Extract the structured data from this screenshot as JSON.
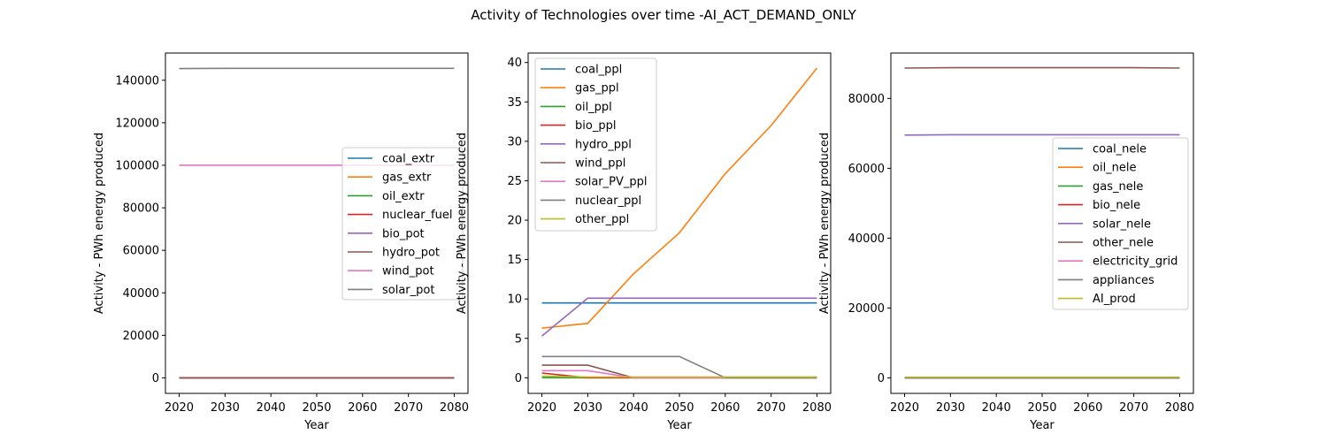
{
  "title": "Activity of Technologies over time -AI_ACT_DEMAND_ONLY",
  "chart_data": [
    {
      "type": "line",
      "xlabel": "Year",
      "ylabel": "Activity - PWh energy produced",
      "x": [
        2020,
        2030,
        2040,
        2050,
        2060,
        2070,
        2080
      ],
      "xticks": [
        2020,
        2030,
        2040,
        2050,
        2060,
        2070,
        2080
      ],
      "xlim": [
        2017,
        2083
      ],
      "ylim": [
        -7300,
        152800
      ],
      "yticks": [
        0,
        20000,
        40000,
        60000,
        80000,
        100000,
        120000,
        140000
      ],
      "ytick_labels": [
        "0",
        "20000",
        "40000",
        "60000",
        "80000",
        "100000",
        "120000",
        "140000"
      ],
      "legend": "center-right",
      "series": [
        {
          "name": "coal_extr",
          "color": "#1f77b4",
          "values": [
            0,
            0,
            0,
            0,
            0,
            0,
            0
          ]
        },
        {
          "name": "gas_extr",
          "color": "#ff7f0e",
          "values": [
            0,
            0,
            0,
            0,
            0,
            0,
            0
          ]
        },
        {
          "name": "oil_extr",
          "color": "#2ca02c",
          "values": [
            0,
            0,
            0,
            0,
            0,
            0,
            0
          ]
        },
        {
          "name": "nuclear_fuel",
          "color": "#d62728",
          "values": [
            0,
            0,
            0,
            0,
            0,
            0,
            0
          ]
        },
        {
          "name": "bio_pot",
          "color": "#9467bd",
          "values": [
            0,
            0,
            0,
            0,
            0,
            0,
            0
          ]
        },
        {
          "name": "hydro_pot",
          "color": "#8c564b",
          "values": [
            0,
            0,
            0,
            0,
            0,
            0,
            0
          ]
        },
        {
          "name": "wind_pot",
          "color": "#e377c2",
          "values": [
            100000,
            100000,
            100000,
            100000,
            100000,
            100000,
            100000
          ]
        },
        {
          "name": "solar_pot",
          "color": "#7f7f7f",
          "values": [
            145500,
            145600,
            145600,
            145600,
            145600,
            145600,
            145600
          ]
        }
      ]
    },
    {
      "type": "line",
      "xlabel": "Year",
      "ylabel": "Activity - PWh energy produced",
      "x": [
        2020,
        2030,
        2040,
        2050,
        2060,
        2070,
        2080
      ],
      "xticks": [
        2020,
        2030,
        2040,
        2050,
        2060,
        2070,
        2080
      ],
      "xlim": [
        2017,
        2083
      ],
      "ylim": [
        -1.98,
        41.2
      ],
      "yticks": [
        0,
        5,
        10,
        15,
        20,
        25,
        30,
        35,
        40
      ],
      "ytick_labels": [
        "0",
        "5",
        "10",
        "15",
        "20",
        "25",
        "30",
        "35",
        "40"
      ],
      "legend": "top-left",
      "series": [
        {
          "name": "coal_ppl",
          "color": "#1f77b4",
          "values": [
            9.5,
            9.5,
            9.5,
            9.5,
            9.5,
            9.5,
            9.5
          ]
        },
        {
          "name": "gas_ppl",
          "color": "#ff7f0e",
          "values": [
            6.3,
            6.9,
            13.2,
            18.4,
            25.9,
            32.0,
            39.3
          ]
        },
        {
          "name": "oil_ppl",
          "color": "#2ca02c",
          "values": [
            0,
            0,
            0,
            0,
            0,
            0,
            0
          ]
        },
        {
          "name": "bio_ppl",
          "color": "#d62728",
          "values": [
            0.6,
            0,
            0,
            0,
            0,
            0,
            0
          ]
        },
        {
          "name": "hydro_ppl",
          "color": "#9467bd",
          "values": [
            5.3,
            10.1,
            10.1,
            10.1,
            10.1,
            10.1,
            10.1
          ]
        },
        {
          "name": "wind_ppl",
          "color": "#8c564b",
          "values": [
            1.6,
            1.6,
            0,
            0,
            0,
            0,
            0
          ]
        },
        {
          "name": "solar_PV_ppl",
          "color": "#e377c2",
          "values": [
            0.9,
            0.9,
            0,
            0,
            0,
            0,
            0
          ]
        },
        {
          "name": "nuclear_ppl",
          "color": "#7f7f7f",
          "values": [
            2.7,
            2.7,
            2.7,
            2.7,
            0,
            0,
            0
          ]
        },
        {
          "name": "other_ppl",
          "color": "#bcbd22",
          "values": [
            0.2,
            0.1,
            0.1,
            0.1,
            0.1,
            0.1,
            0.1
          ]
        }
      ]
    },
    {
      "type": "line",
      "xlabel": "Year",
      "ylabel": "Activity - PWh energy produced",
      "x": [
        2020,
        2030,
        2040,
        2050,
        2060,
        2070,
        2080
      ],
      "xticks": [
        2020,
        2030,
        2040,
        2050,
        2060,
        2070,
        2080
      ],
      "xlim": [
        2017,
        2083
      ],
      "ylim": [
        -4450,
        93000
      ],
      "yticks": [
        0,
        20000,
        40000,
        60000,
        80000
      ],
      "ytick_labels": [
        "0",
        "20000",
        "40000",
        "60000",
        "80000"
      ],
      "legend": "center-right",
      "series": [
        {
          "name": "coal_nele",
          "color": "#1f77b4",
          "values": [
            0,
            0,
            0,
            0,
            0,
            0,
            0
          ]
        },
        {
          "name": "oil_nele",
          "color": "#ff7f0e",
          "values": [
            0,
            0,
            0,
            0,
            0,
            0,
            0
          ]
        },
        {
          "name": "gas_nele",
          "color": "#2ca02c",
          "values": [
            0,
            0,
            0,
            0,
            0,
            0,
            0
          ]
        },
        {
          "name": "bio_nele",
          "color": "#d62728",
          "values": [
            0,
            0,
            0,
            0,
            0,
            0,
            0
          ]
        },
        {
          "name": "solar_nele",
          "color": "#9467bd",
          "values": [
            69500,
            69600,
            69600,
            69600,
            69600,
            69600,
            69600
          ]
        },
        {
          "name": "other_nele",
          "color": "#8c564b",
          "values": [
            88700,
            88800,
            88800,
            88800,
            88800,
            88800,
            88700
          ]
        },
        {
          "name": "electricity_grid",
          "color": "#e377c2",
          "values": [
            0,
            0,
            0,
            0,
            0,
            0,
            0
          ]
        },
        {
          "name": "appliances",
          "color": "#7f7f7f",
          "values": [
            0,
            0,
            0,
            0,
            0,
            0,
            0
          ]
        },
        {
          "name": "AI_prod",
          "color": "#bcbd22",
          "values": [
            200,
            200,
            200,
            200,
            200,
            200,
            200
          ]
        }
      ]
    }
  ]
}
